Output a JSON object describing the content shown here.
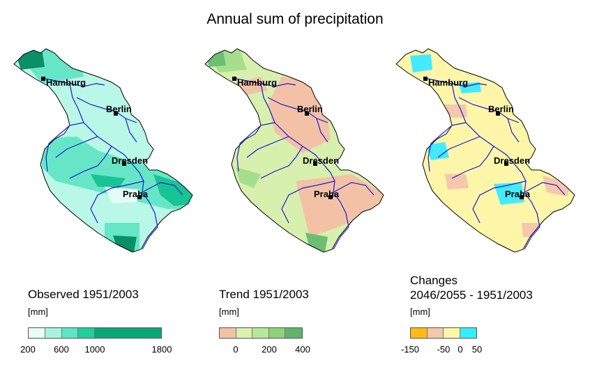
{
  "title": "Annual sum of precipitation",
  "cities": [
    "Hamburg",
    "Berlin",
    "Dresden",
    "Praha"
  ],
  "panels": [
    {
      "id": "observed",
      "title": "Observed 1951/2003",
      "unit": "[mm]",
      "legend_colors": [
        "#e8fdf6",
        "#a7f3e0",
        "#5ee6c4",
        "#1fcf9e",
        "#0aa877"
      ],
      "legend_ticks": [
        "200",
        "600",
        "1000",
        "1800"
      ],
      "map_colors": {
        "base": "#b9f7e7",
        "mid": "#66e6c6",
        "high": "#19c494",
        "top": "#0a8f66",
        "low": "#e4fcf6"
      }
    },
    {
      "id": "trend",
      "title": "Trend 1951/2003",
      "unit": "[mm]",
      "legend_colors": [
        "#f3c2a6",
        "#d9f2b0",
        "#b6e895",
        "#8ed27a",
        "#5fb66a"
      ],
      "legend_ticks": [
        "0",
        "200",
        "400"
      ],
      "map_colors": {
        "base": "#d7f0ad",
        "neg": "#f3c2a6",
        "mid": "#a6df8c",
        "high": "#6cbf70"
      }
    },
    {
      "id": "changes",
      "title": "Changes\n2046/2055 - 1951/2003",
      "unit": "[mm]",
      "legend_colors": [
        "#ffbb11",
        "#f6c7ad",
        "#fdf7a6",
        "#33eeff"
      ],
      "legend_ticks": [
        "-150",
        "-50",
        "0",
        "50"
      ],
      "map_colors": {
        "base": "#fdf6a8",
        "neg": "#f6c7ad",
        "pos": "#44eaff"
      }
    }
  ],
  "colors": {
    "river": "#1a1ad6",
    "border": "#000000"
  }
}
